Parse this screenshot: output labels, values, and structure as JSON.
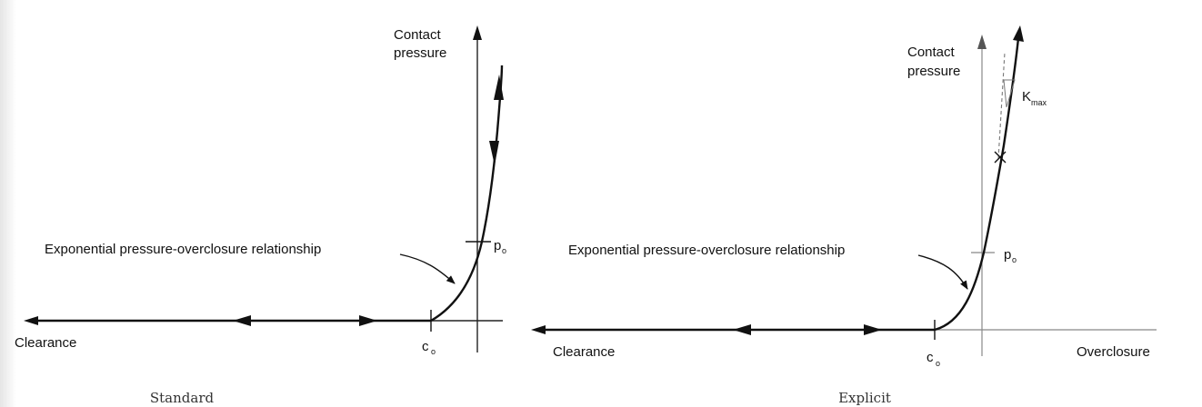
{
  "standard": {
    "caption": "Standard",
    "y_axis_label_line1": "Contact",
    "y_axis_label_line2": "pressure",
    "x_axis_left_label": "Clearance",
    "annotation": "Exponential pressure-overclosure relationship",
    "c0_label": "c",
    "c0_sub": "o",
    "p0_label": "p",
    "p0_sub": "o"
  },
  "explicit": {
    "caption": "Explicit",
    "y_axis_label_line1": "Contact",
    "y_axis_label_line2": "pressure",
    "x_axis_left_label": "Clearance",
    "x_axis_right_label": "Overclosure",
    "annotation": "Exponential pressure-overclosure relationship",
    "c0_label": "c",
    "c0_sub": "o",
    "p0_label": "p",
    "p0_sub": "o",
    "kmax_label": "K",
    "kmax_sub": "max"
  }
}
